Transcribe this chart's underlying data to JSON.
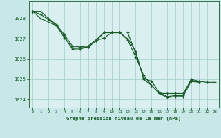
{
  "background_color": "#c8e8e8",
  "plot_bg_color": "#daf0f0",
  "grid_color": "#a0c8c8",
  "line_color": "#1a5c2a",
  "title": "Graphe pression niveau de la mer (hPa)",
  "xlim": [
    -0.5,
    23.5
  ],
  "ylim": [
    1023.6,
    1028.85
  ],
  "yticks": [
    1024,
    1025,
    1026,
    1027,
    1028
  ],
  "xticks": [
    0,
    1,
    2,
    3,
    4,
    5,
    6,
    7,
    8,
    9,
    10,
    11,
    12,
    13,
    14,
    15,
    16,
    17,
    18,
    19,
    20,
    21,
    22,
    23
  ],
  "series": [
    {
      "x": [
        0,
        1,
        2,
        3,
        4,
        5,
        6,
        7,
        8,
        9,
        10,
        11,
        12,
        13,
        14,
        15,
        16,
        17,
        18,
        19,
        20,
        21
      ],
      "y": [
        1028.35,
        1028.35,
        1028.0,
        1027.7,
        1027.2,
        1026.65,
        1026.6,
        1026.65,
        1026.95,
        1027.3,
        1027.3,
        1027.3,
        1027.0,
        1026.4,
        1025.0,
        1024.7,
        1024.3,
        1024.3,
        1024.3,
        1024.3,
        1024.95,
        1024.85
      ]
    },
    {
      "x": [
        0,
        1,
        3,
        4,
        5,
        6,
        7,
        8,
        9,
        10,
        11,
        12,
        13,
        14,
        15,
        16,
        17,
        18,
        19,
        20,
        21
      ],
      "y": [
        1028.35,
        1028.0,
        1027.65,
        1027.1,
        1026.5,
        1026.5,
        1026.6,
        1026.9,
        1027.3,
        1027.3,
        1027.3,
        1026.95,
        1026.1,
        1025.2,
        1024.7,
        1024.3,
        1024.1,
        1024.15,
        1024.15,
        1024.9,
        1024.85
      ]
    },
    {
      "x": [
        0,
        1,
        2,
        3
      ],
      "y": [
        1028.35,
        1028.2,
        1027.95,
        1027.65
      ]
    },
    {
      "x": [
        3,
        4,
        5,
        6,
        7,
        8,
        9,
        10,
        11
      ],
      "y": [
        1027.65,
        1027.05,
        1026.55,
        1026.55,
        1026.6,
        1026.9,
        1027.05,
        1027.3,
        1027.3
      ]
    },
    {
      "x": [
        12,
        13,
        14,
        15,
        16,
        17,
        18,
        19,
        20,
        21,
        22,
        23
      ],
      "y": [
        1027.3,
        1026.3,
        1025.05,
        1024.9,
        1024.35,
        1024.15,
        1024.2,
        1024.2,
        1025.0,
        1024.9,
        1024.85,
        1024.85
      ]
    }
  ]
}
